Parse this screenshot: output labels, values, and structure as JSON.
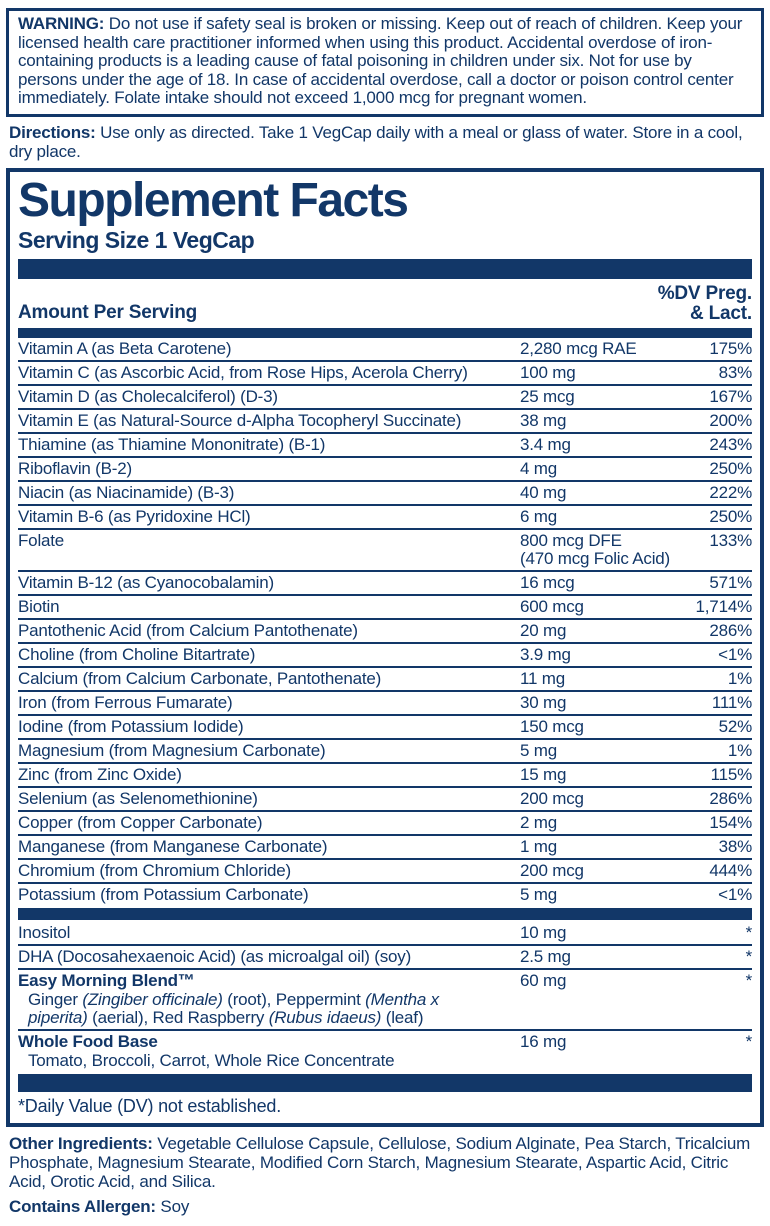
{
  "colors": {
    "navy": "#123768",
    "background": "#ffffff"
  },
  "warning": {
    "label": "WARNING:",
    "text": " Do not use if safety seal is broken or missing. Keep out of reach of children. Keep your licensed health care practitioner informed when using this product. Accidental overdose of iron-containing products is a leading cause of fatal poisoning in children under six. Not for use by persons under the age of 18. In case of accidental overdose, call a doctor or poison control center immediately. Folate intake should not exceed 1,000 mcg for pregnant women."
  },
  "directions": {
    "label": "Directions:",
    "text": " Use only as directed. Take 1 VegCap daily with a meal or glass of water. Store in a cool, dry place."
  },
  "facts": {
    "title": "Supplement Facts",
    "serving_size": "Serving Size 1 VegCap",
    "header": {
      "amount": "Amount Per Serving",
      "dv_line1": "%DV Preg.",
      "dv_line2": "& Lact."
    },
    "rows": [
      {
        "name": "Vitamin A (as Beta Carotene)",
        "amount": "2,280 mcg RAE",
        "dv": "175%"
      },
      {
        "name": "Vitamin C (as Ascorbic Acid, from Rose Hips, Acerola Cherry)",
        "amount": "100 mg",
        "dv": "83%"
      },
      {
        "name": "Vitamin D (as Cholecalciferol) (D-3)",
        "amount": "25 mcg",
        "dv": "167%"
      },
      {
        "name": "Vitamin E (as Natural-Source d-Alpha Tocopheryl Succinate)",
        "amount": "38 mg",
        "dv": "200%"
      },
      {
        "name": "Thiamine (as Thiamine Mononitrate) (B-1)",
        "amount": "3.4 mg",
        "dv": "243%"
      },
      {
        "name": "Riboflavin (B-2)",
        "amount": "4 mg",
        "dv": "250%"
      },
      {
        "name": "Niacin (as Niacinamide) (B-3)",
        "amount": "40 mg",
        "dv": "222%"
      },
      {
        "name": "Vitamin B-6 (as Pyridoxine HCl)",
        "amount": "6 mg",
        "dv": "250%"
      },
      {
        "name": "Folate",
        "amount": "800 mcg DFE",
        "amount2": "(470 mcg Folic Acid)",
        "dv": "133%"
      },
      {
        "name": "Vitamin B-12 (as Cyanocobalamin)",
        "amount": "16 mcg",
        "dv": "571%"
      },
      {
        "name": "Biotin",
        "amount": "600 mcg",
        "dv": "1,714%"
      },
      {
        "name": "Pantothenic Acid (from Calcium Pantothenate)",
        "amount": "20 mg",
        "dv": "286%"
      },
      {
        "name": "Choline (from Choline Bitartrate)",
        "amount": "3.9 mg",
        "dv": "<1%"
      },
      {
        "name": "Calcium (from Calcium Carbonate, Pantothenate)",
        "amount": "11 mg",
        "dv": "1%"
      },
      {
        "name": "Iron (from Ferrous Fumarate)",
        "amount": "30 mg",
        "dv": "111%"
      },
      {
        "name": "Iodine (from Potassium Iodide)",
        "amount": "150 mcg",
        "dv": "52%"
      },
      {
        "name": "Magnesium (from Magnesium Carbonate)",
        "amount": "5 mg",
        "dv": "1%"
      },
      {
        "name": "Zinc (from Zinc Oxide)",
        "amount": "15 mg",
        "dv": "115%"
      },
      {
        "name": "Selenium (as Selenomethionine)",
        "amount": "200 mcg",
        "dv": "286%"
      },
      {
        "name": "Copper (from Copper Carbonate)",
        "amount": "2 mg",
        "dv": "154%"
      },
      {
        "name": "Manganese (from Manganese Carbonate)",
        "amount": "1 mg",
        "dv": "38%"
      },
      {
        "name": "Chromium (from Chromium Chloride)",
        "amount": "200 mcg",
        "dv": "444%"
      },
      {
        "name": "Potassium (from Potassium Carbonate)",
        "amount": "5 mg",
        "dv": "<1%"
      }
    ],
    "extra_rows": [
      {
        "name": "Inositol",
        "amount": "10 mg",
        "dv": "*"
      },
      {
        "name": "DHA (Docosahexaenoic Acid) (as microalgal oil) (soy)",
        "amount": "2.5 mg",
        "dv": "*"
      },
      {
        "name": "Easy Morning Blend™",
        "amount": "60 mg",
        "dv": "*",
        "sub_segments": [
          "Ginger ",
          "(Zingiber officinale)",
          " (root), Peppermint ",
          "(Mentha x piperita)",
          " (aerial), Red Raspberry ",
          "(Rubus idaeus)",
          " (leaf)"
        ]
      },
      {
        "name": "Whole Food Base",
        "amount": "16 mg",
        "dv": "*",
        "sub": "Tomato, Broccoli, Carrot, Whole Rice Concentrate"
      }
    ],
    "footnote": "*Daily Value (DV) not established."
  },
  "other_ingredients": {
    "label": "Other Ingredients:",
    "text": " Vegetable Cellulose Capsule, Cellulose, Sodium Alginate, Pea Starch, Tricalcium Phosphate, Magnesium Stearate, Modified Corn Starch, Magnesium Stearate, Aspartic Acid, Citric Acid, Orotic Acid, and Silica."
  },
  "allergen": {
    "label": "Contains Allergen:",
    "text": " Soy"
  }
}
